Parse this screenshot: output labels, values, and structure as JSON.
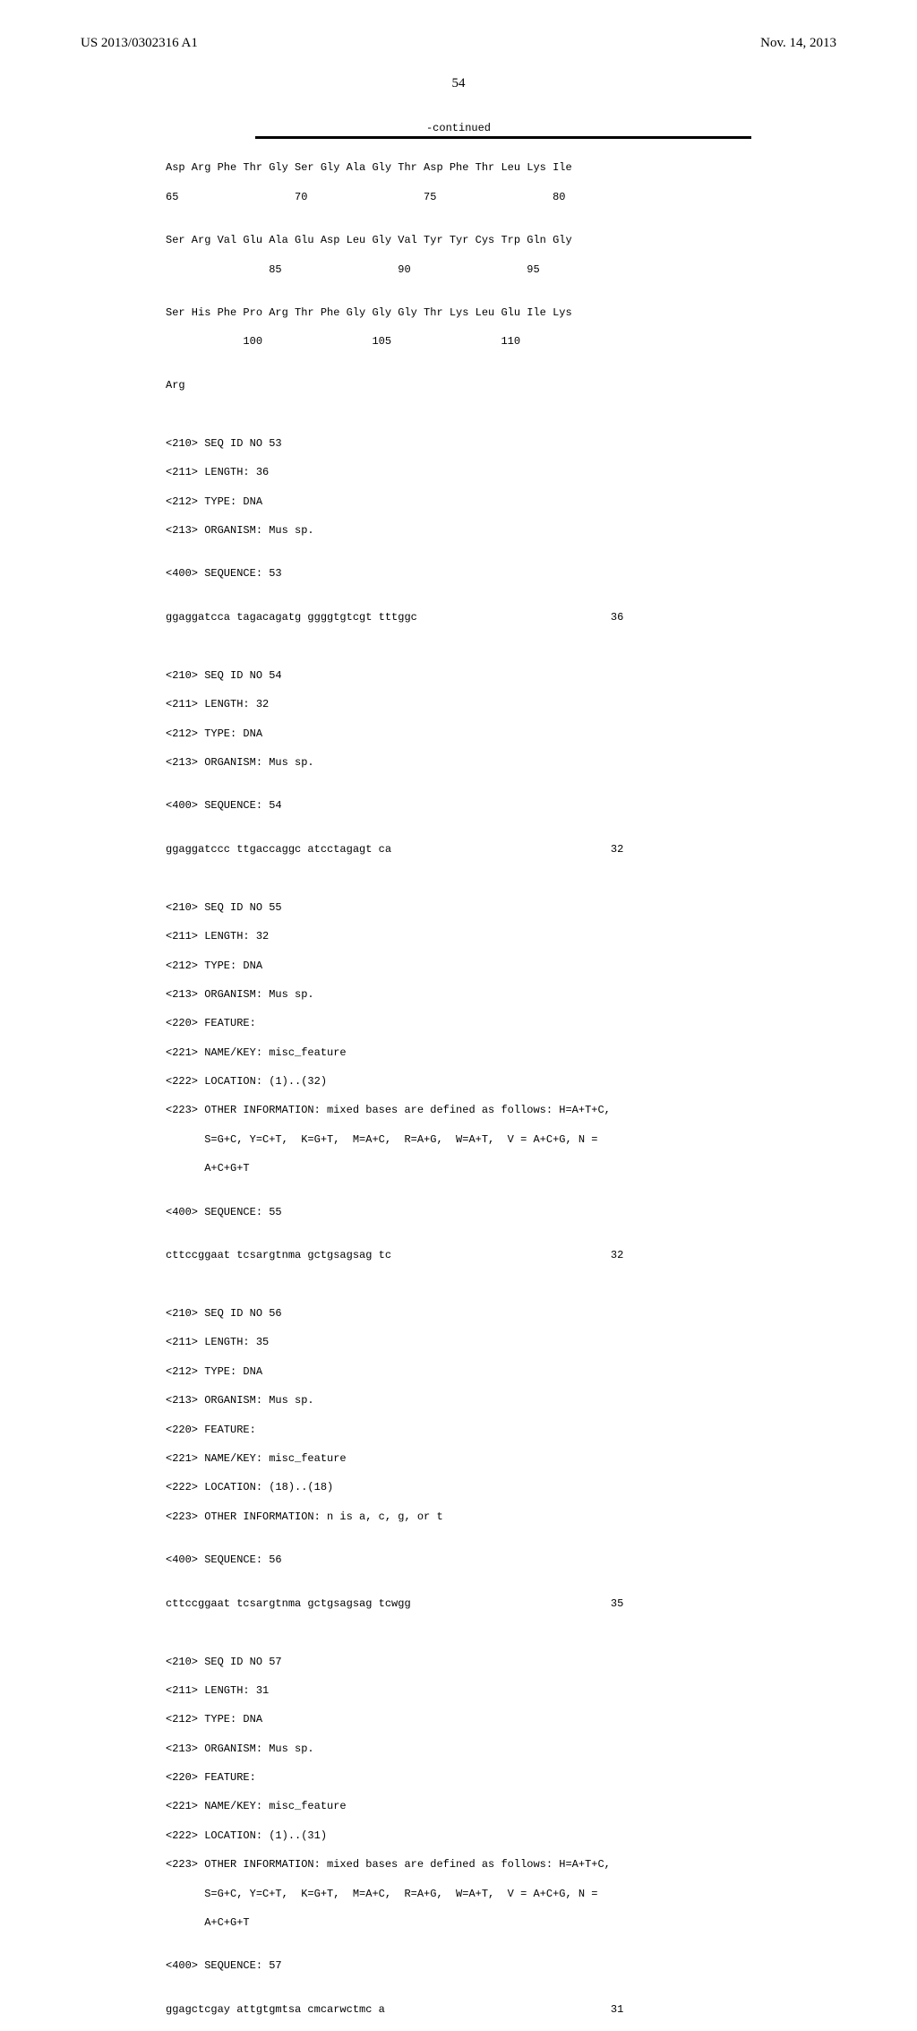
{
  "header": {
    "left": "US 2013/0302316 A1",
    "right": "Nov. 14, 2013",
    "page_number": "54"
  },
  "continued_label": "-continued",
  "seq_block1": {
    "line1": "Asp Arg Phe Thr Gly Ser Gly Ala Gly Thr Asp Phe Thr Leu Lys Ile",
    "line2": "65                  70                  75                  80",
    "line3": "Ser Arg Val Glu Ala Glu Asp Leu Gly Val Tyr Tyr Cys Trp Gln Gly",
    "line4": "                85                  90                  95",
    "line5": "Ser His Phe Pro Arg Thr Phe Gly Gly Gly Thr Lys Leu Glu Ile Lys",
    "line6": "            100                 105                 110",
    "line7": "Arg"
  },
  "entry53": {
    "h1": "<210> SEQ ID NO 53",
    "h2": "<211> LENGTH: 36",
    "h3": "<212> TYPE: DNA",
    "h4": "<213> ORGANISM: Mus sp.",
    "seq_label": "<400> SEQUENCE: 53",
    "seq": "ggaggatcca tagacagatg ggggtgtcgt tttggc                              36"
  },
  "entry54": {
    "h1": "<210> SEQ ID NO 54",
    "h2": "<211> LENGTH: 32",
    "h3": "<212> TYPE: DNA",
    "h4": "<213> ORGANISM: Mus sp.",
    "seq_label": "<400> SEQUENCE: 54",
    "seq": "ggaggatccc ttgaccaggc atcctagagt ca                                  32"
  },
  "entry55": {
    "h1": "<210> SEQ ID NO 55",
    "h2": "<211> LENGTH: 32",
    "h3": "<212> TYPE: DNA",
    "h4": "<213> ORGANISM: Mus sp.",
    "h5": "<220> FEATURE:",
    "h6": "<221> NAME/KEY: misc_feature",
    "h7": "<222> LOCATION: (1)..(32)",
    "h8": "<223> OTHER INFORMATION: mixed bases are defined as follows: H=A+T+C,",
    "h8b": "      S=G+C, Y=C+T,  K=G+T,  M=A+C,  R=A+G,  W=A+T,  V = A+C+G, N =",
    "h8c": "      A+C+G+T",
    "seq_label": "<400> SEQUENCE: 55",
    "seq": "cttccggaat tcsargtnma gctgsagsag tc                                  32"
  },
  "entry56": {
    "h1": "<210> SEQ ID NO 56",
    "h2": "<211> LENGTH: 35",
    "h3": "<212> TYPE: DNA",
    "h4": "<213> ORGANISM: Mus sp.",
    "h5": "<220> FEATURE:",
    "h6": "<221> NAME/KEY: misc_feature",
    "h7": "<222> LOCATION: (18)..(18)",
    "h8": "<223> OTHER INFORMATION: n is a, c, g, or t",
    "seq_label": "<400> SEQUENCE: 56",
    "seq": "cttccggaat tcsargtnma gctgsagsag tcwgg                               35"
  },
  "entry57": {
    "h1": "<210> SEQ ID NO 57",
    "h2": "<211> LENGTH: 31",
    "h3": "<212> TYPE: DNA",
    "h4": "<213> ORGANISM: Mus sp.",
    "h5": "<220> FEATURE:",
    "h6": "<221> NAME/KEY: misc_feature",
    "h7": "<222> LOCATION: (1)..(31)",
    "h8": "<223> OTHER INFORMATION: mixed bases are defined as follows: H=A+T+C,",
    "h8b": "      S=G+C, Y=C+T,  K=G+T,  M=A+C,  R=A+G,  W=A+T,  V = A+C+G, N =",
    "h8c": "      A+C+G+T",
    "seq_label": "<400> SEQUENCE: 57",
    "seq": "ggagctcgay attgtgmtsa cmcarwctmc a                                   31"
  }
}
